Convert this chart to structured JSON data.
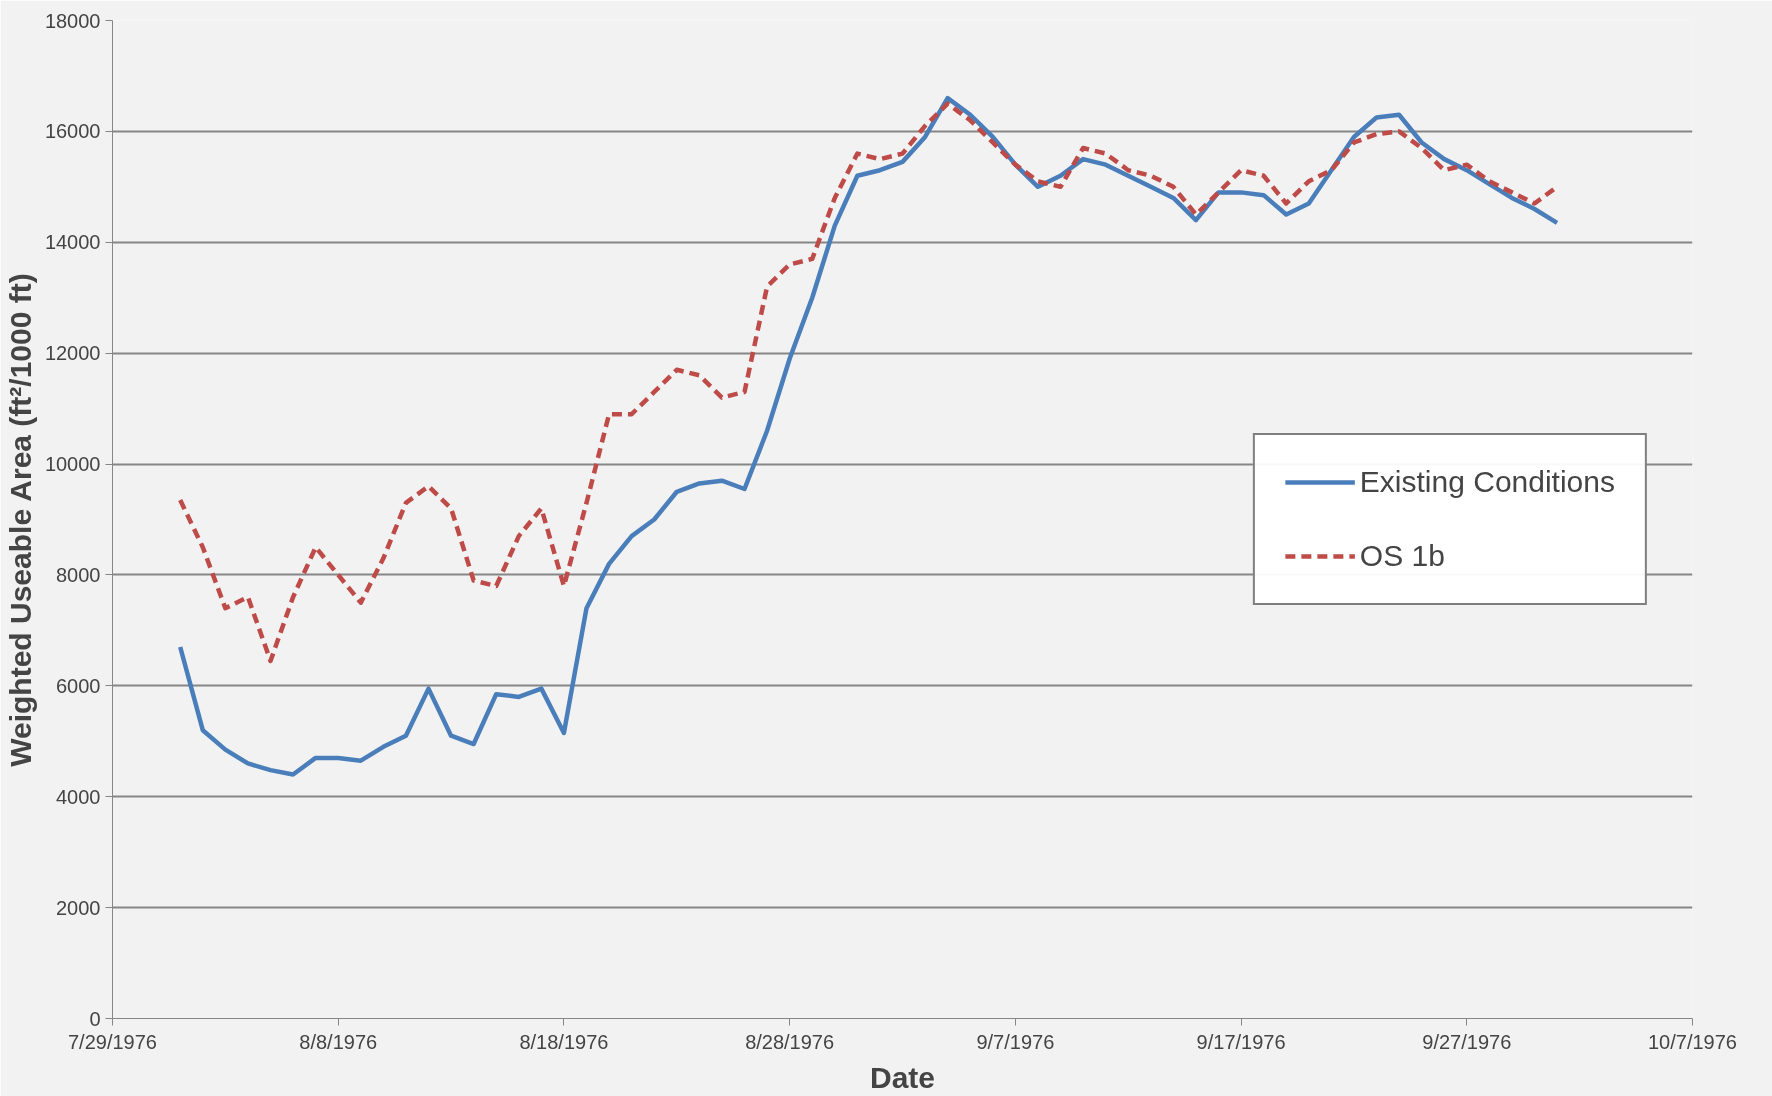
{
  "chart_data": {
    "type": "line",
    "xlabel": "Date",
    "ylabel": "Weighted Useable Area (ft²/1000 ft)",
    "x": [
      "1976-08-01",
      "1976-08-02",
      "1976-08-03",
      "1976-08-04",
      "1976-08-05",
      "1976-08-06",
      "1976-08-07",
      "1976-08-08",
      "1976-08-09",
      "1976-08-10",
      "1976-08-11",
      "1976-08-12",
      "1976-08-13",
      "1976-08-14",
      "1976-08-15",
      "1976-08-16",
      "1976-08-17",
      "1976-08-18",
      "1976-08-19",
      "1976-08-20",
      "1976-08-21",
      "1976-08-22",
      "1976-08-23",
      "1976-08-24",
      "1976-08-25",
      "1976-08-26",
      "1976-08-27",
      "1976-08-28",
      "1976-08-29",
      "1976-08-30",
      "1976-08-31",
      "1976-09-01",
      "1976-09-02",
      "1976-09-03",
      "1976-09-04",
      "1976-09-05",
      "1976-09-06",
      "1976-09-07",
      "1976-09-08",
      "1976-09-09",
      "1976-09-10",
      "1976-09-11",
      "1976-09-12",
      "1976-09-13",
      "1976-09-14",
      "1976-09-15",
      "1976-09-16",
      "1976-09-17",
      "1976-09-18",
      "1976-09-19",
      "1976-09-20",
      "1976-09-21",
      "1976-09-22",
      "1976-09-23",
      "1976-09-24",
      "1976-09-25",
      "1976-09-26",
      "1976-09-27",
      "1976-09-28",
      "1976-09-29",
      "1976-09-30",
      "1976-10-01"
    ],
    "series": [
      {
        "name": "Existing Conditions",
        "color": "#4a7ebb",
        "line_style": "solid",
        "values": [
          6700,
          5200,
          4850,
          4600,
          4480,
          4400,
          4700,
          4700,
          4650,
          4900,
          5100,
          5950,
          5100,
          4950,
          5850,
          5800,
          5950,
          5150,
          7400,
          8200,
          8700,
          9000,
          9500,
          9650,
          9700,
          9550,
          10600,
          11900,
          13000,
          14300,
          15200,
          15300,
          15450,
          15900,
          16600,
          16300,
          15900,
          15400,
          15000,
          15200,
          15500,
          15400,
          15200,
          15000,
          14800,
          14400,
          14900,
          14900,
          14850,
          14500,
          14700,
          15300,
          15900,
          16250,
          16300,
          15800,
          15500,
          15300,
          15050,
          14800,
          14600,
          14350
        ]
      },
      {
        "name": "OS 1b",
        "color": "#be4b48",
        "line_style": "dashed",
        "values": [
          9350,
          8500,
          7400,
          7600,
          6450,
          7600,
          8500,
          8000,
          7500,
          8300,
          9300,
          9600,
          9200,
          7900,
          7800,
          8700,
          9200,
          7800,
          9300,
          10900,
          10900,
          11300,
          11700,
          11600,
          11200,
          11300,
          13200,
          13600,
          13700,
          14800,
          15600,
          15500,
          15600,
          16100,
          16500,
          16200,
          15800,
          15400,
          15100,
          15000,
          15700,
          15600,
          15300,
          15200,
          15000,
          14500,
          14900,
          15300,
          15200,
          14700,
          15100,
          15300,
          15800,
          15950,
          16000,
          15700,
          15300,
          15400,
          15100,
          14900,
          14700,
          15000
        ]
      }
    ],
    "xlim": [
      "1976-07-29",
      "1976-10-07"
    ],
    "xticks": [
      {
        "value": "1976-07-29",
        "label": "7/29/1976"
      },
      {
        "value": "1976-08-08",
        "label": "8/8/1976"
      },
      {
        "value": "1976-08-18",
        "label": "8/18/1976"
      },
      {
        "value": "1976-08-28",
        "label": "8/28/1976"
      },
      {
        "value": "1976-09-07",
        "label": "9/7/1976"
      },
      {
        "value": "1976-09-17",
        "label": "9/17/1976"
      },
      {
        "value": "1976-09-27",
        "label": "9/27/1976"
      },
      {
        "value": "1976-10-07",
        "label": "10/7/1976"
      }
    ],
    "ylim": [
      0,
      18000
    ],
    "yticks": [
      0,
      2000,
      4000,
      6000,
      8000,
      10000,
      12000,
      14000,
      16000,
      18000
    ],
    "grid": "y",
    "legend": "right",
    "marker": "none"
  }
}
